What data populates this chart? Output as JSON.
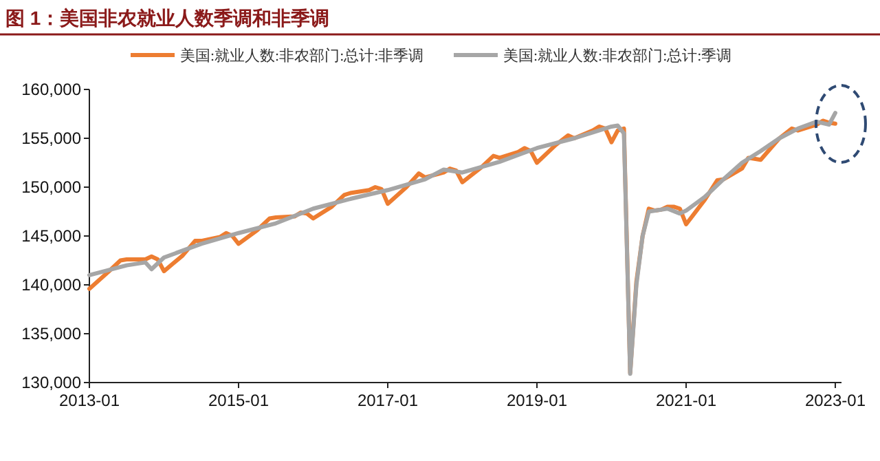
{
  "chart_data": {
    "type": "line",
    "title": "图 1：美国非农就业人数季调和非季调",
    "xlim": [
      "2013-01",
      "2023-02"
    ],
    "xticks": [
      "2013-01",
      "2015-01",
      "2017-01",
      "2019-01",
      "2021-01",
      "2023-01"
    ],
    "ylim": [
      130000,
      160000
    ],
    "yticks": [
      {
        "value": 130000,
        "label": "130,000"
      },
      {
        "value": 135000,
        "label": "135,000"
      },
      {
        "value": 140000,
        "label": "140,000"
      },
      {
        "value": 145000,
        "label": "145,000"
      },
      {
        "value": 150000,
        "label": "150,000"
      },
      {
        "value": 155000,
        "label": "155,000"
      },
      {
        "value": 160000,
        "label": "160,000"
      }
    ],
    "grid": false,
    "legend": "top",
    "marker": "none",
    "line_style": "solid",
    "series": [
      {
        "name": "美国:就业人数:非农部门:总计:非季调",
        "color": "#ed7d31",
        "x": [
          "2013-01",
          "2013-04",
          "2013-06",
          "2013-07",
          "2013-10",
          "2013-11",
          "2013-12",
          "2014-01",
          "2014-04",
          "2014-06",
          "2014-07",
          "2014-10",
          "2014-11",
          "2014-12",
          "2015-01",
          "2015-04",
          "2015-06",
          "2015-07",
          "2015-10",
          "2015-11",
          "2015-12",
          "2016-01",
          "2016-04",
          "2016-06",
          "2016-07",
          "2016-10",
          "2016-11",
          "2016-12",
          "2017-01",
          "2017-04",
          "2017-06",
          "2017-07",
          "2017-10",
          "2017-11",
          "2017-12",
          "2018-01",
          "2018-04",
          "2018-06",
          "2018-07",
          "2018-10",
          "2018-11",
          "2018-12",
          "2019-01",
          "2019-04",
          "2019-06",
          "2019-07",
          "2019-10",
          "2019-11",
          "2019-12",
          "2020-01",
          "2020-02",
          "2020-03",
          "2020-04",
          "2020-05",
          "2020-06",
          "2020-07",
          "2020-08",
          "2020-09",
          "2020-10",
          "2020-11",
          "2020-12",
          "2021-01",
          "2021-04",
          "2021-06",
          "2021-07",
          "2021-10",
          "2021-11",
          "2021-12",
          "2022-01",
          "2022-04",
          "2022-06",
          "2022-07",
          "2022-10",
          "2022-11",
          "2022-12",
          "2023-01"
        ],
        "values": [
          139600,
          141300,
          142500,
          142600,
          142600,
          142900,
          142600,
          141400,
          143000,
          144500,
          144500,
          144900,
          145300,
          145000,
          144200,
          145600,
          146800,
          146900,
          147000,
          147400,
          147300,
          146800,
          148000,
          149200,
          149400,
          149700,
          150000,
          149800,
          148300,
          150000,
          151400,
          151000,
          151500,
          151900,
          151700,
          150500,
          152000,
          153200,
          153000,
          153600,
          154000,
          153700,
          152500,
          154300,
          155300,
          155000,
          155800,
          156200,
          156000,
          154600,
          155800,
          156000,
          131000,
          140300,
          145000,
          147800,
          147600,
          147700,
          148000,
          148000,
          147800,
          146200,
          148700,
          150700,
          150800,
          151900,
          153000,
          152900,
          152800,
          155000,
          156000,
          155800,
          156400,
          156800,
          156600,
          156500
        ]
      },
      {
        "name": "美国:就业人数:非农部门:总计:季调",
        "color": "#a6a6a6",
        "x": [
          "2013-01",
          "2013-07",
          "2013-10",
          "2013-11",
          "2014-01",
          "2014-07",
          "2015-01",
          "2015-07",
          "2016-01",
          "2016-07",
          "2017-01",
          "2017-07",
          "2017-10",
          "2018-01",
          "2018-07",
          "2019-01",
          "2019-07",
          "2020-01",
          "2020-02",
          "2020-03",
          "2020-04",
          "2020-05",
          "2020-06",
          "2020-07",
          "2020-10",
          "2020-12",
          "2021-01",
          "2021-04",
          "2021-07",
          "2021-10",
          "2022-01",
          "2022-04",
          "2022-07",
          "2022-10",
          "2022-12",
          "2023-01"
        ],
        "values": [
          141000,
          142000,
          142300,
          141600,
          142800,
          144200,
          145300,
          146300,
          147800,
          148800,
          149700,
          150800,
          151800,
          151500,
          152600,
          154000,
          155000,
          156200,
          156300,
          155500,
          130900,
          140000,
          145000,
          147500,
          147800,
          147300,
          147600,
          149000,
          150800,
          152500,
          153700,
          155000,
          156000,
          156700,
          156400,
          157600
        ]
      }
    ]
  }
}
